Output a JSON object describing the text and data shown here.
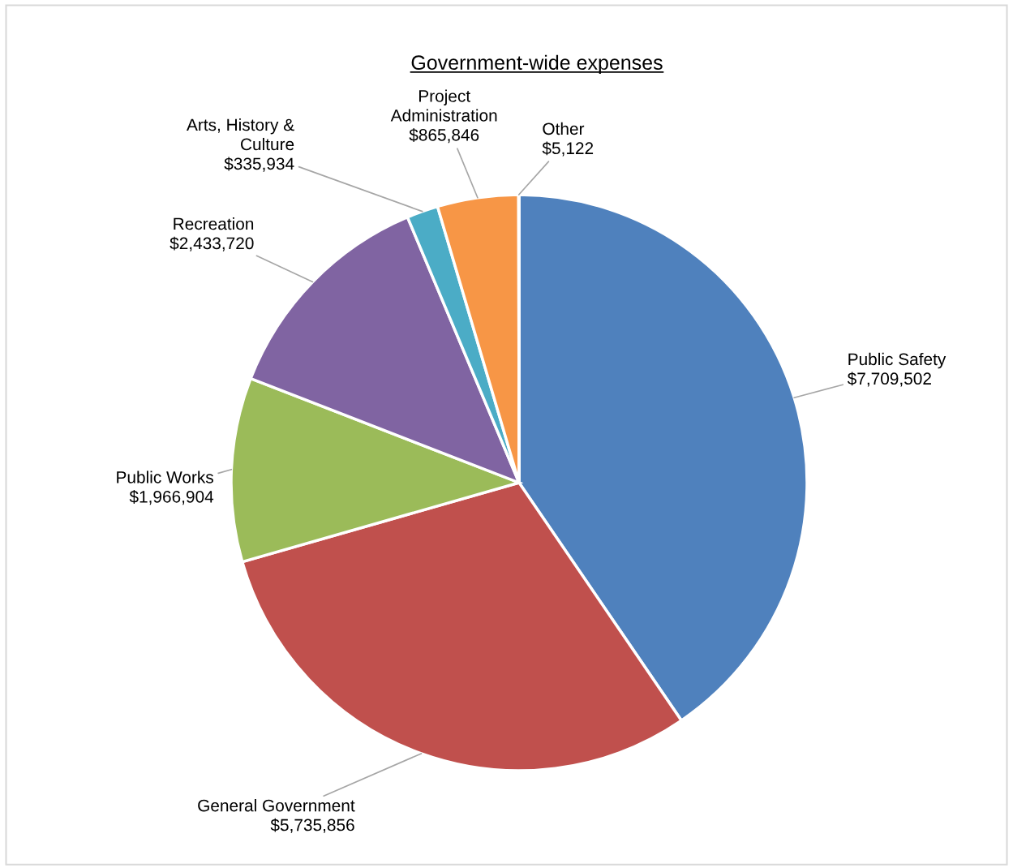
{
  "chart_data": {
    "type": "pie",
    "title": "Government-wide expenses",
    "categories": [
      "Public Safety",
      "General Government",
      "Public Works",
      "Recreation",
      "Arts, History &\nCulture",
      "Project\nAdministration",
      "Other"
    ],
    "values": [
      7709502,
      5735856,
      1966904,
      2433720,
      335934,
      865846,
      5122
    ],
    "value_labels": [
      "$7,709,502",
      "$5,735,856",
      "$1,966,904",
      "$2,433,720",
      "$335,934",
      "$865,846",
      "$5,122"
    ],
    "colors": [
      "#4f81bd",
      "#c0504d",
      "#9bbb59",
      "#8064a2",
      "#4bacc6",
      "#f79646",
      "#2c4d75"
    ],
    "legend": false
  }
}
